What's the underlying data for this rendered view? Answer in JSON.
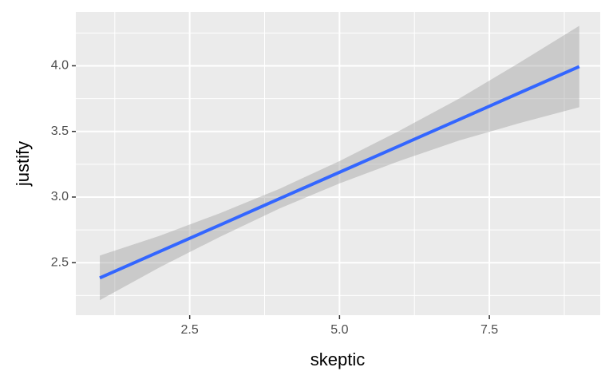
{
  "chart_data": {
    "type": "line",
    "x_label": "skeptic",
    "y_label": "justify",
    "x": [
      1,
      2,
      3,
      4,
      5,
      6,
      7,
      8,
      9
    ],
    "values": [
      2.384,
      2.585,
      2.786,
      2.988,
      3.189,
      3.39,
      3.591,
      3.793,
      3.994
    ],
    "ci_lower": [
      2.214,
      2.465,
      2.696,
      2.913,
      3.104,
      3.275,
      3.431,
      3.563,
      3.684
    ],
    "ci_upper": [
      2.554,
      2.705,
      2.876,
      3.063,
      3.274,
      3.505,
      3.751,
      4.023,
      4.304
    ],
    "color": "#3366ff",
    "band_color": "#999999",
    "xlim": [
      0.6,
      9.35
    ],
    "ylim": [
      2.1,
      4.41
    ],
    "xticks": [
      2.5,
      {
        "value": 5,
        "label": "5.0"
      },
      7.5
    ],
    "yticks": [
      2.5,
      {
        "value": 3,
        "label": "3.0"
      },
      3.5,
      {
        "value": 4,
        "label": "4.0"
      }
    ],
    "x_minor_ticks": [
      1.25,
      3.75,
      6.25,
      8.75
    ],
    "y_minor_ticks": [
      2.25,
      2.75,
      3.25,
      3.75,
      4.25
    ],
    "grid": true
  }
}
